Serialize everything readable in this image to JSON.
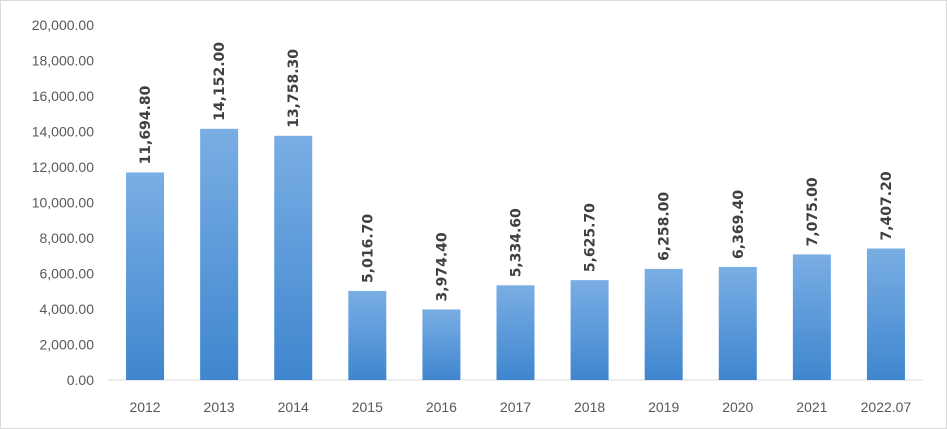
{
  "chart_data": {
    "type": "bar",
    "title": "",
    "xlabel": "",
    "ylabel": "",
    "categories": [
      "2012",
      "2013",
      "2014",
      "2015",
      "2016",
      "2017",
      "2018",
      "2019",
      "2020",
      "2021",
      "2022.07"
    ],
    "values": [
      11694.8,
      14152.0,
      13758.3,
      5016.7,
      3974.4,
      5334.6,
      5625.7,
      6258.0,
      6369.4,
      7075.0,
      7407.2
    ],
    "data_labels": [
      "11,694.80",
      "14,152.00",
      "13,758.30",
      "5,016.70",
      "3,974.40",
      "5,334.60",
      "5,625.70",
      "6,258.00",
      "6,369.40",
      "7,075.00",
      "7,407.20"
    ],
    "ylim": [
      0,
      20000
    ],
    "y_ticks": [
      0,
      2000,
      4000,
      6000,
      8000,
      10000,
      12000,
      14000,
      16000,
      18000,
      20000
    ],
    "y_tick_labels": [
      "0.00",
      "2,000.00",
      "4,000.00",
      "6,000.00",
      "8,000.00",
      "10,000.00",
      "12,000.00",
      "14,000.00",
      "16,000.00",
      "18,000.00",
      "20,000.00"
    ],
    "grid": false,
    "legend": "none",
    "colors": {
      "bar_top": "#7aaee4",
      "bar_bottom": "#3f86cf",
      "axis": "#d9d9d9"
    }
  }
}
